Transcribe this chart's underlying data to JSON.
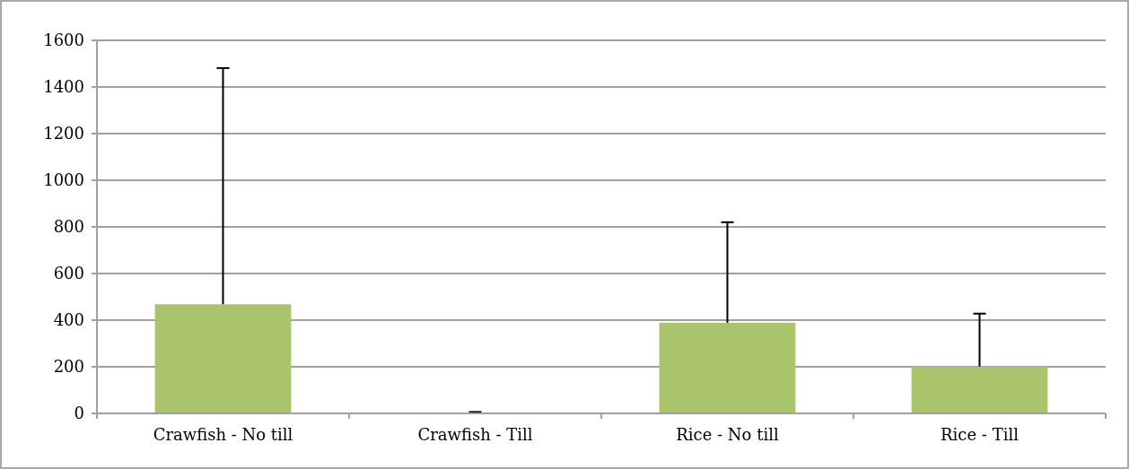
{
  "chart_data": {
    "type": "bar",
    "categories": [
      "Crawfish - No till",
      "Crawfish - Till",
      "Rice - No till",
      "Rice - Till"
    ],
    "values": [
      468,
      1,
      389,
      201
    ],
    "errors": [
      [
        468,
        1481
      ],
      [
        1,
        6
      ],
      [
        389,
        820
      ],
      [
        201,
        428
      ]
    ],
    "color": "#a9c46a",
    "ylim": [
      0,
      1600
    ],
    "yticks": [
      0,
      200,
      400,
      600,
      800,
      1000,
      1200,
      1400,
      1600
    ],
    "grid": "y"
  }
}
